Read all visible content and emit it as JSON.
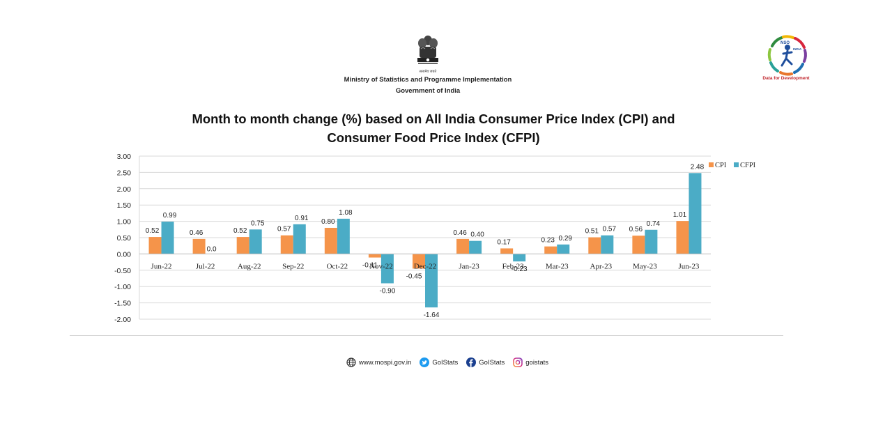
{
  "header": {
    "emblem_motto": "सत्यमेव जयते",
    "ministry": "Ministry of Statistics and Programme Implementation",
    "government": "Government of India",
    "logo_text_1": "NSO",
    "logo_text_2": "INDIA",
    "logo_tagline": "Data for Development"
  },
  "chart_data": {
    "type": "bar",
    "title_line1": "Month to month change (%) based on All India Consumer Price Index (CPI) and",
    "title_line2": "Consumer Food Price Index (CFPI)",
    "categories": [
      "Jun-22",
      "Jul-22",
      "Aug-22",
      "Sep-22",
      "Oct-22",
      "Nov-22",
      "Dec-22",
      "Jan-23",
      "Feb-23",
      "Mar-23",
      "Apr-23",
      "May-23",
      "Jun-23"
    ],
    "series": [
      {
        "name": "CPI",
        "color": "#f5944a",
        "values": [
          0.52,
          0.46,
          0.52,
          0.57,
          0.8,
          -0.11,
          -0.45,
          0.46,
          0.17,
          0.23,
          0.51,
          0.56,
          1.01
        ],
        "labels": [
          "0.52",
          "0.46",
          "0.52",
          "0.57",
          "0.80",
          "-0.11",
          "-0.45",
          "0.46",
          "0.17",
          "0.23",
          "0.51",
          "0.56",
          "1.01"
        ]
      },
      {
        "name": "CFPI",
        "color": "#4bacc6",
        "values": [
          0.99,
          0.0,
          0.75,
          0.91,
          1.08,
          -0.9,
          -1.64,
          0.4,
          -0.23,
          0.29,
          0.57,
          0.74,
          2.48
        ],
        "labels": [
          "0.99",
          "0.0",
          "0.75",
          "0.91",
          "1.08",
          "-0.90",
          "-1.64",
          "0.40",
          "-0.23",
          "0.29",
          "0.57",
          "0.74",
          "2.48"
        ]
      }
    ],
    "ylim": [
      -2.0,
      3.0
    ],
    "yticks": [
      "3.00",
      "2.50",
      "2.00",
      "1.50",
      "1.00",
      "0.50",
      "0.00",
      "-0.50",
      "-1.00",
      "-1.50",
      "-2.00"
    ],
    "ytick_values": [
      3.0,
      2.5,
      2.0,
      1.5,
      1.0,
      0.5,
      0.0,
      -0.5,
      -1.0,
      -1.5,
      -2.0
    ],
    "grid": true,
    "legend_position": "top-right"
  },
  "footer": {
    "website": "www.mospi.gov.in",
    "twitter": "GoIStats",
    "facebook": "GoIStats",
    "instagram": "goistats"
  }
}
